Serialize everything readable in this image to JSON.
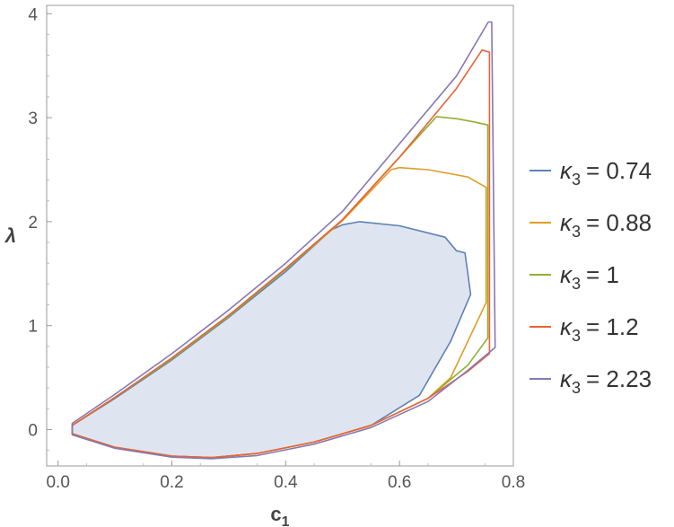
{
  "chart_data": {
    "type": "area",
    "title": "",
    "xlabel": "c",
    "xlabel_sub": "1",
    "ylabel": "λ",
    "xlim": [
      -0.02,
      0.8
    ],
    "ylim": [
      -0.35,
      4.08
    ],
    "xticks": [
      0.0,
      0.2,
      0.4,
      0.6,
      0.8
    ],
    "xtick_labels": [
      "0.0",
      "0.2",
      "0.4",
      "0.6",
      "0.8"
    ],
    "yticks": [
      0,
      1,
      2,
      3,
      4
    ],
    "ytick_labels": [
      "0",
      "1",
      "2",
      "3",
      "4"
    ],
    "grid": false,
    "legend_position": "right",
    "legend_symbol": "κ",
    "legend_subscript": "3",
    "series": [
      {
        "name": "κ3 = 0.74",
        "legend_value": "= 0.74",
        "color": "#5e81b5",
        "fill": "#dfe5f0",
        "filled": true,
        "points": [
          [
            0.025,
            -0.04
          ],
          [
            0.1,
            -0.17
          ],
          [
            0.2,
            -0.255
          ],
          [
            0.27,
            -0.27
          ],
          [
            0.35,
            -0.23
          ],
          [
            0.45,
            -0.12
          ],
          [
            0.55,
            0.04
          ],
          [
            0.635,
            0.33
          ],
          [
            0.69,
            0.85
          ],
          [
            0.725,
            1.3
          ],
          [
            0.72,
            1.5
          ],
          [
            0.715,
            1.7
          ],
          [
            0.7,
            1.72
          ],
          [
            0.68,
            1.85
          ],
          [
            0.6,
            1.96
          ],
          [
            0.53,
            2.0
          ],
          [
            0.5,
            1.97
          ],
          [
            0.48,
            1.92
          ],
          [
            0.4,
            1.52
          ],
          [
            0.3,
            1.08
          ],
          [
            0.2,
            0.67
          ],
          [
            0.1,
            0.3
          ],
          [
            0.025,
            0.04
          ]
        ]
      },
      {
        "name": "κ3 = 0.88",
        "legend_value": "= 0.88",
        "color": "#e19c24",
        "filled": false,
        "points": [
          [
            0.025,
            -0.04
          ],
          [
            0.1,
            -0.17
          ],
          [
            0.2,
            -0.255
          ],
          [
            0.27,
            -0.27
          ],
          [
            0.35,
            -0.23
          ],
          [
            0.45,
            -0.12
          ],
          [
            0.55,
            0.04
          ],
          [
            0.65,
            0.3
          ],
          [
            0.69,
            0.5
          ],
          [
            0.752,
            1.22
          ],
          [
            0.752,
            2.33
          ],
          [
            0.72,
            2.43
          ],
          [
            0.65,
            2.5
          ],
          [
            0.6,
            2.52
          ],
          [
            0.585,
            2.5
          ],
          [
            0.5,
            2.01
          ],
          [
            0.4,
            1.54
          ],
          [
            0.3,
            1.09
          ],
          [
            0.2,
            0.68
          ],
          [
            0.1,
            0.31
          ],
          [
            0.025,
            0.04
          ]
        ]
      },
      {
        "name": "κ3 = 1",
        "legend_value": "= 1",
        "color": "#8fb032",
        "filled": false,
        "points": [
          [
            0.025,
            -0.04
          ],
          [
            0.1,
            -0.17
          ],
          [
            0.2,
            -0.255
          ],
          [
            0.27,
            -0.27
          ],
          [
            0.35,
            -0.23
          ],
          [
            0.45,
            -0.12
          ],
          [
            0.55,
            0.04
          ],
          [
            0.65,
            0.3
          ],
          [
            0.72,
            0.62
          ],
          [
            0.755,
            0.88
          ],
          [
            0.755,
            2.93
          ],
          [
            0.73,
            2.96
          ],
          [
            0.7,
            2.99
          ],
          [
            0.665,
            3.01
          ],
          [
            0.6,
            2.62
          ],
          [
            0.5,
            2.02
          ],
          [
            0.4,
            1.54
          ],
          [
            0.3,
            1.09
          ],
          [
            0.2,
            0.68
          ],
          [
            0.1,
            0.31
          ],
          [
            0.025,
            0.04
          ]
        ]
      },
      {
        "name": "κ3 = 1.2",
        "legend_value": "= 1.2",
        "color": "#eb6235",
        "filled": false,
        "points": [
          [
            0.025,
            -0.04
          ],
          [
            0.1,
            -0.17
          ],
          [
            0.2,
            -0.255
          ],
          [
            0.27,
            -0.27
          ],
          [
            0.35,
            -0.23
          ],
          [
            0.45,
            -0.12
          ],
          [
            0.55,
            0.04
          ],
          [
            0.65,
            0.3
          ],
          [
            0.72,
            0.56
          ],
          [
            0.758,
            0.73
          ],
          [
            0.758,
            3.63
          ],
          [
            0.745,
            3.65
          ],
          [
            0.7,
            3.28
          ],
          [
            0.6,
            2.62
          ],
          [
            0.5,
            2.02
          ],
          [
            0.4,
            1.55
          ],
          [
            0.3,
            1.1
          ],
          [
            0.2,
            0.69
          ],
          [
            0.1,
            0.31
          ],
          [
            0.025,
            0.04
          ]
        ]
      },
      {
        "name": "κ3 = 2.23",
        "legend_value": "= 2.23",
        "color": "#8778b3",
        "filled": false,
        "points": [
          [
            0.025,
            -0.05
          ],
          [
            0.1,
            -0.18
          ],
          [
            0.2,
            -0.265
          ],
          [
            0.27,
            -0.28
          ],
          [
            0.35,
            -0.25
          ],
          [
            0.45,
            -0.14
          ],
          [
            0.55,
            0.02
          ],
          [
            0.65,
            0.27
          ],
          [
            0.72,
            0.57
          ],
          [
            0.768,
            0.79
          ],
          [
            0.762,
            3.92
          ],
          [
            0.756,
            3.92
          ],
          [
            0.7,
            3.4
          ],
          [
            0.6,
            2.75
          ],
          [
            0.5,
            2.1
          ],
          [
            0.4,
            1.6
          ],
          [
            0.3,
            1.15
          ],
          [
            0.2,
            0.73
          ],
          [
            0.1,
            0.34
          ],
          [
            0.025,
            0.06
          ]
        ]
      }
    ]
  }
}
